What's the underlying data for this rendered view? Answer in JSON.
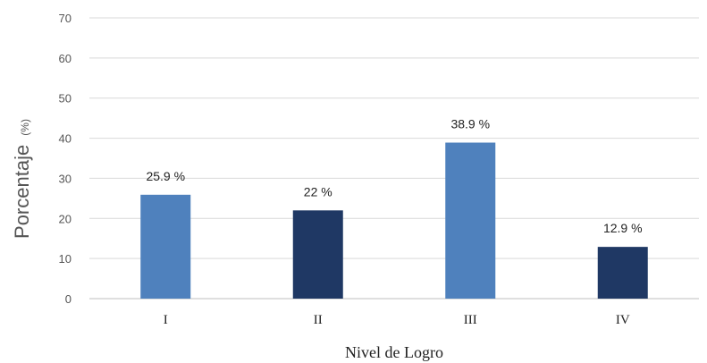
{
  "chart_data": {
    "type": "bar",
    "categories": [
      "I",
      "II",
      "III",
      "IV"
    ],
    "values": [
      25.9,
      22,
      38.9,
      12.9
    ],
    "data_labels": [
      "25.9 %",
      "22 %",
      "38.9 %",
      "12.9 %"
    ],
    "bar_colors": [
      "#4f81bd",
      "#1f3864",
      "#4f81bd",
      "#1f3864"
    ],
    "xlabel": "Nivel de Logro",
    "ylabel": "Porcentaje",
    "ylabel_unit": "(%)",
    "ylim": [
      0,
      70
    ],
    "yticks": [
      0,
      10,
      20,
      30,
      40,
      50,
      60,
      70
    ],
    "grid": true,
    "legend": "none"
  }
}
